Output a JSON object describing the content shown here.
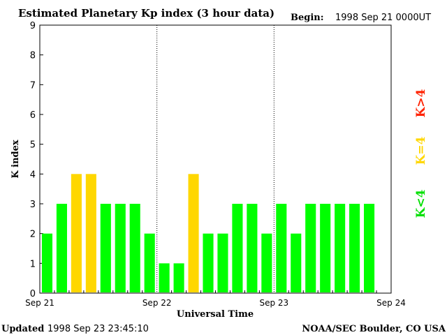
{
  "header": {
    "title": "Estimated Planetary Kp index (3 hour data)",
    "begin_label": "Begin:",
    "begin_value": "1998 Sep 21 0000UT"
  },
  "footer": {
    "updated_label": "Updated",
    "updated_value": "1998 Sep 23 23:45:10",
    "source": "NOAA/SEC Boulder, CO USA"
  },
  "legend": {
    "high": "K>4",
    "equal": "K=4",
    "low": "K<4"
  },
  "colors": {
    "low": "#00ff00",
    "equal": "#ffd700",
    "high": "#ff2200",
    "axis": "#000000"
  },
  "chart_data": {
    "type": "bar",
    "title": "Estimated Planetary Kp index (3 hour data)",
    "xlabel": "Universal Time",
    "ylabel": "K index",
    "ylim": [
      0,
      9
    ],
    "yticks": [
      "0",
      "1",
      "2",
      "3",
      "4",
      "5",
      "6",
      "7",
      "8",
      "9"
    ],
    "xticks": [
      "Sep 21",
      "Sep 22",
      "Sep 23",
      "Sep 24"
    ],
    "grid": false,
    "day_separators": true,
    "bars_per_day": 8,
    "values": [
      2,
      3,
      4,
      4,
      3,
      3,
      3,
      2,
      1,
      1,
      4,
      2,
      2,
      3,
      3,
      2,
      3,
      2,
      3,
      3,
      3,
      3,
      3
    ]
  }
}
